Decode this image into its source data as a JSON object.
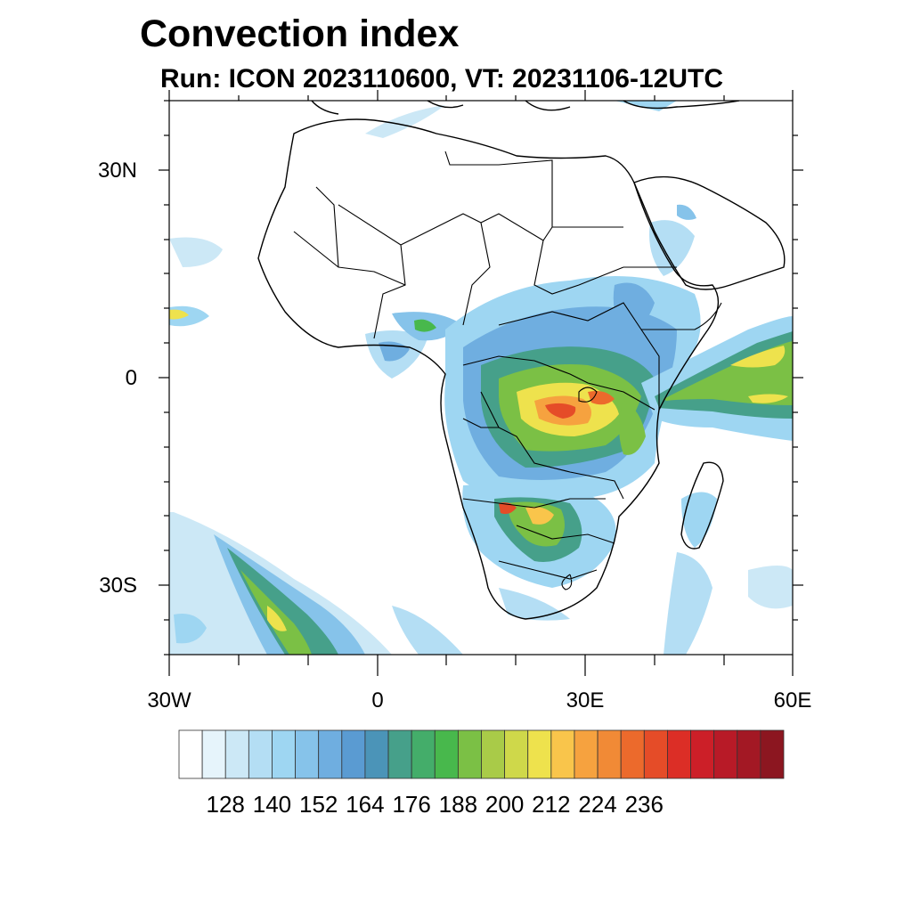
{
  "title": "Convection index",
  "subtitle": "Run: ICON 2023110600,  VT: 20231106-12UTC",
  "axes": {
    "lat_labels": [
      "30N",
      "0",
      "30S"
    ],
    "lon_labels": [
      "30W",
      "0",
      "30E",
      "60E"
    ],
    "lon_range": [
      -30,
      60
    ],
    "lat_range": [
      -40,
      40
    ]
  },
  "colorbar": {
    "colors": [
      "#ffffff",
      "#e6f4fb",
      "#cce8f6",
      "#b4def4",
      "#9ed6f2",
      "#86c3ea",
      "#6faee0",
      "#5a9bd2",
      "#4b94b8",
      "#46a08a",
      "#44ad6a",
      "#48b84c",
      "#7bc045",
      "#a9cb48",
      "#cfd84a",
      "#eee24d",
      "#f9c54b",
      "#f6a23f",
      "#f18a36",
      "#ec6a2c",
      "#e54c28",
      "#dc2e26",
      "#cc1f28",
      "#b81a27",
      "#a31824",
      "#8c1620"
    ],
    "tick_labels": [
      "128",
      "140",
      "152",
      "164",
      "176",
      "188",
      "200",
      "212",
      "224",
      "236"
    ]
  }
}
